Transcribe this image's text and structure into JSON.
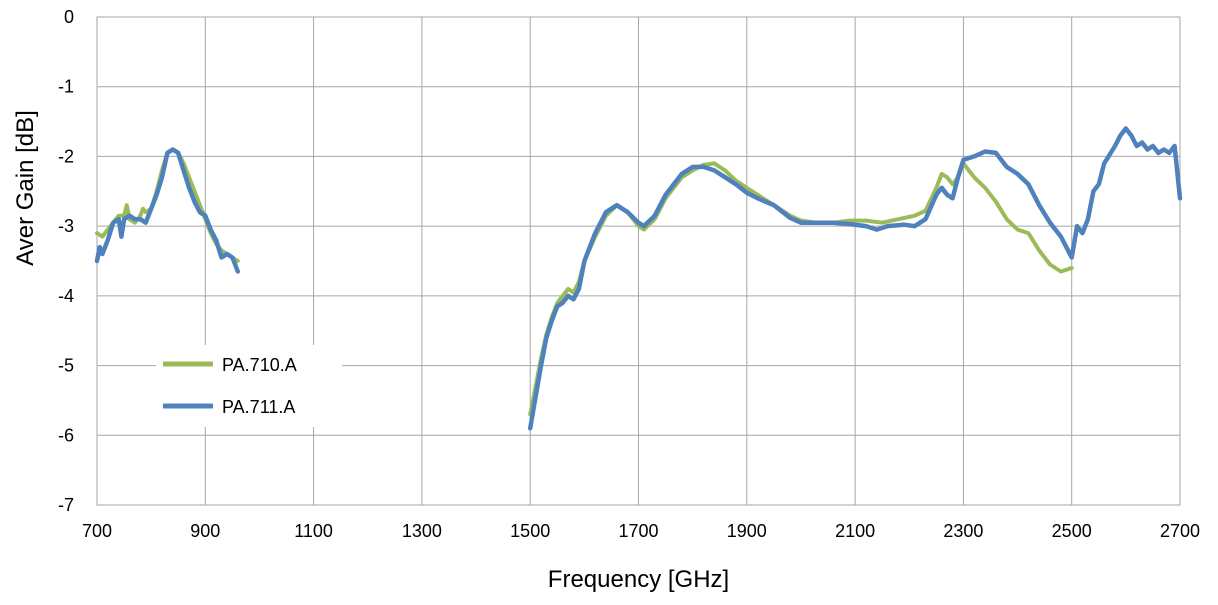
{
  "chart_data": {
    "type": "line",
    "title": "",
    "xlabel": "Frequency [GHz]",
    "ylabel": "Aver Gain [dB]",
    "xlim": [
      700,
      2700
    ],
    "ylim": [
      -7,
      0
    ],
    "x_ticks": [
      700,
      900,
      1100,
      1300,
      1500,
      1700,
      1900,
      2100,
      2300,
      2500,
      2700
    ],
    "y_ticks": [
      0,
      -1,
      -2,
      -3,
      -4,
      -5,
      -6,
      -7
    ],
    "grid": true,
    "legend_position": "lower-left",
    "series": [
      {
        "name": "PA.710.A",
        "color": "#9bbb59",
        "segments": [
          [
            [
              700,
              -3.1
            ],
            [
              710,
              -3.15
            ],
            [
              720,
              -3.05
            ],
            [
              730,
              -2.95
            ],
            [
              740,
              -2.85
            ],
            [
              750,
              -2.85
            ],
            [
              755,
              -2.7
            ],
            [
              760,
              -2.9
            ],
            [
              770,
              -2.95
            ],
            [
              780,
              -2.85
            ],
            [
              785,
              -2.75
            ],
            [
              790,
              -2.8
            ],
            [
              800,
              -2.75
            ],
            [
              810,
              -2.5
            ],
            [
              820,
              -2.2
            ],
            [
              830,
              -1.95
            ],
            [
              840,
              -1.9
            ],
            [
              850,
              -1.95
            ],
            [
              860,
              -2.1
            ],
            [
              870,
              -2.3
            ],
            [
              880,
              -2.5
            ],
            [
              890,
              -2.7
            ],
            [
              900,
              -2.9
            ],
            [
              910,
              -3.1
            ],
            [
              920,
              -3.25
            ],
            [
              930,
              -3.35
            ],
            [
              940,
              -3.4
            ],
            [
              950,
              -3.45
            ],
            [
              960,
              -3.5
            ]
          ],
          [
            [
              1500,
              -5.7
            ],
            [
              1510,
              -5.3
            ],
            [
              1520,
              -4.9
            ],
            [
              1530,
              -4.55
            ],
            [
              1540,
              -4.3
            ],
            [
              1550,
              -4.1
            ],
            [
              1560,
              -4.0
            ],
            [
              1570,
              -3.9
            ],
            [
              1580,
              -3.95
            ],
            [
              1590,
              -3.8
            ],
            [
              1600,
              -3.5
            ],
            [
              1620,
              -3.15
            ],
            [
              1640,
              -2.85
            ],
            [
              1660,
              -2.7
            ],
            [
              1680,
              -2.8
            ],
            [
              1700,
              -3.0
            ],
            [
              1710,
              -3.05
            ],
            [
              1730,
              -2.9
            ],
            [
              1750,
              -2.6
            ],
            [
              1780,
              -2.3
            ],
            [
              1800,
              -2.2
            ],
            [
              1820,
              -2.12
            ],
            [
              1840,
              -2.1
            ],
            [
              1860,
              -2.2
            ],
            [
              1880,
              -2.35
            ],
            [
              1900,
              -2.45
            ],
            [
              1920,
              -2.55
            ],
            [
              1950,
              -2.7
            ],
            [
              1980,
              -2.85
            ],
            [
              2000,
              -2.92
            ],
            [
              2030,
              -2.95
            ],
            [
              2060,
              -2.95
            ],
            [
              2090,
              -2.92
            ],
            [
              2120,
              -2.92
            ],
            [
              2150,
              -2.95
            ],
            [
              2180,
              -2.9
            ],
            [
              2210,
              -2.85
            ],
            [
              2230,
              -2.78
            ],
            [
              2250,
              -2.45
            ],
            [
              2260,
              -2.25
            ],
            [
              2270,
              -2.3
            ],
            [
              2280,
              -2.4
            ],
            [
              2290,
              -2.3
            ],
            [
              2300,
              -2.1
            ],
            [
              2310,
              -2.2
            ],
            [
              2320,
              -2.3
            ],
            [
              2340,
              -2.45
            ],
            [
              2360,
              -2.65
            ],
            [
              2380,
              -2.9
            ],
            [
              2400,
              -3.05
            ],
            [
              2420,
              -3.1
            ],
            [
              2440,
              -3.35
            ],
            [
              2460,
              -3.55
            ],
            [
              2480,
              -3.65
            ],
            [
              2500,
              -3.6
            ]
          ]
        ]
      },
      {
        "name": "PA.711.A",
        "color": "#4f81bd",
        "segments": [
          [
            [
              700,
              -3.5
            ],
            [
              705,
              -3.3
            ],
            [
              710,
              -3.4
            ],
            [
              720,
              -3.2
            ],
            [
              730,
              -2.95
            ],
            [
              740,
              -2.9
            ],
            [
              745,
              -3.15
            ],
            [
              750,
              -2.9
            ],
            [
              760,
              -2.85
            ],
            [
              770,
              -2.9
            ],
            [
              780,
              -2.9
            ],
            [
              790,
              -2.95
            ],
            [
              800,
              -2.75
            ],
            [
              810,
              -2.55
            ],
            [
              820,
              -2.3
            ],
            [
              830,
              -1.95
            ],
            [
              840,
              -1.9
            ],
            [
              850,
              -1.95
            ],
            [
              860,
              -2.2
            ],
            [
              870,
              -2.45
            ],
            [
              880,
              -2.65
            ],
            [
              890,
              -2.8
            ],
            [
              900,
              -2.85
            ],
            [
              910,
              -3.05
            ],
            [
              920,
              -3.2
            ],
            [
              930,
              -3.45
            ],
            [
              940,
              -3.4
            ],
            [
              950,
              -3.45
            ],
            [
              960,
              -3.65
            ]
          ],
          [
            [
              1500,
              -5.9
            ],
            [
              1510,
              -5.45
            ],
            [
              1520,
              -5.0
            ],
            [
              1530,
              -4.6
            ],
            [
              1540,
              -4.35
            ],
            [
              1550,
              -4.15
            ],
            [
              1560,
              -4.1
            ],
            [
              1570,
              -4.0
            ],
            [
              1580,
              -4.05
            ],
            [
              1590,
              -3.9
            ],
            [
              1600,
              -3.5
            ],
            [
              1620,
              -3.1
            ],
            [
              1640,
              -2.8
            ],
            [
              1660,
              -2.7
            ],
            [
              1680,
              -2.8
            ],
            [
              1700,
              -2.95
            ],
            [
              1710,
              -3.0
            ],
            [
              1730,
              -2.85
            ],
            [
              1750,
              -2.55
            ],
            [
              1780,
              -2.25
            ],
            [
              1800,
              -2.15
            ],
            [
              1820,
              -2.15
            ],
            [
              1840,
              -2.2
            ],
            [
              1860,
              -2.3
            ],
            [
              1880,
              -2.4
            ],
            [
              1900,
              -2.52
            ],
            [
              1920,
              -2.6
            ],
            [
              1950,
              -2.7
            ],
            [
              1980,
              -2.88
            ],
            [
              2000,
              -2.95
            ],
            [
              2030,
              -2.95
            ],
            [
              2060,
              -2.95
            ],
            [
              2090,
              -2.97
            ],
            [
              2120,
              -3.0
            ],
            [
              2140,
              -3.05
            ],
            [
              2160,
              -3.0
            ],
            [
              2190,
              -2.98
            ],
            [
              2210,
              -3.0
            ],
            [
              2230,
              -2.9
            ],
            [
              2250,
              -2.55
            ],
            [
              2260,
              -2.45
            ],
            [
              2270,
              -2.55
            ],
            [
              2280,
              -2.6
            ],
            [
              2290,
              -2.3
            ],
            [
              2300,
              -2.05
            ],
            [
              2320,
              -2.0
            ],
            [
              2340,
              -1.93
            ],
            [
              2360,
              -1.95
            ],
            [
              2380,
              -2.15
            ],
            [
              2400,
              -2.25
            ],
            [
              2420,
              -2.4
            ],
            [
              2440,
              -2.7
            ],
            [
              2460,
              -2.95
            ],
            [
              2480,
              -3.15
            ],
            [
              2500,
              -3.45
            ],
            [
              2510,
              -3.0
            ],
            [
              2520,
              -3.1
            ],
            [
              2530,
              -2.9
            ],
            [
              2540,
              -2.5
            ],
            [
              2550,
              -2.4
            ],
            [
              2560,
              -2.1
            ],
            [
              2580,
              -1.85
            ],
            [
              2590,
              -1.7
            ],
            [
              2600,
              -1.6
            ],
            [
              2610,
              -1.7
            ],
            [
              2620,
              -1.85
            ],
            [
              2630,
              -1.8
            ],
            [
              2640,
              -1.9
            ],
            [
              2650,
              -1.85
            ],
            [
              2660,
              -1.95
            ],
            [
              2670,
              -1.9
            ],
            [
              2680,
              -1.95
            ],
            [
              2690,
              -1.85
            ],
            [
              2700,
              -2.6
            ]
          ]
        ]
      }
    ]
  }
}
